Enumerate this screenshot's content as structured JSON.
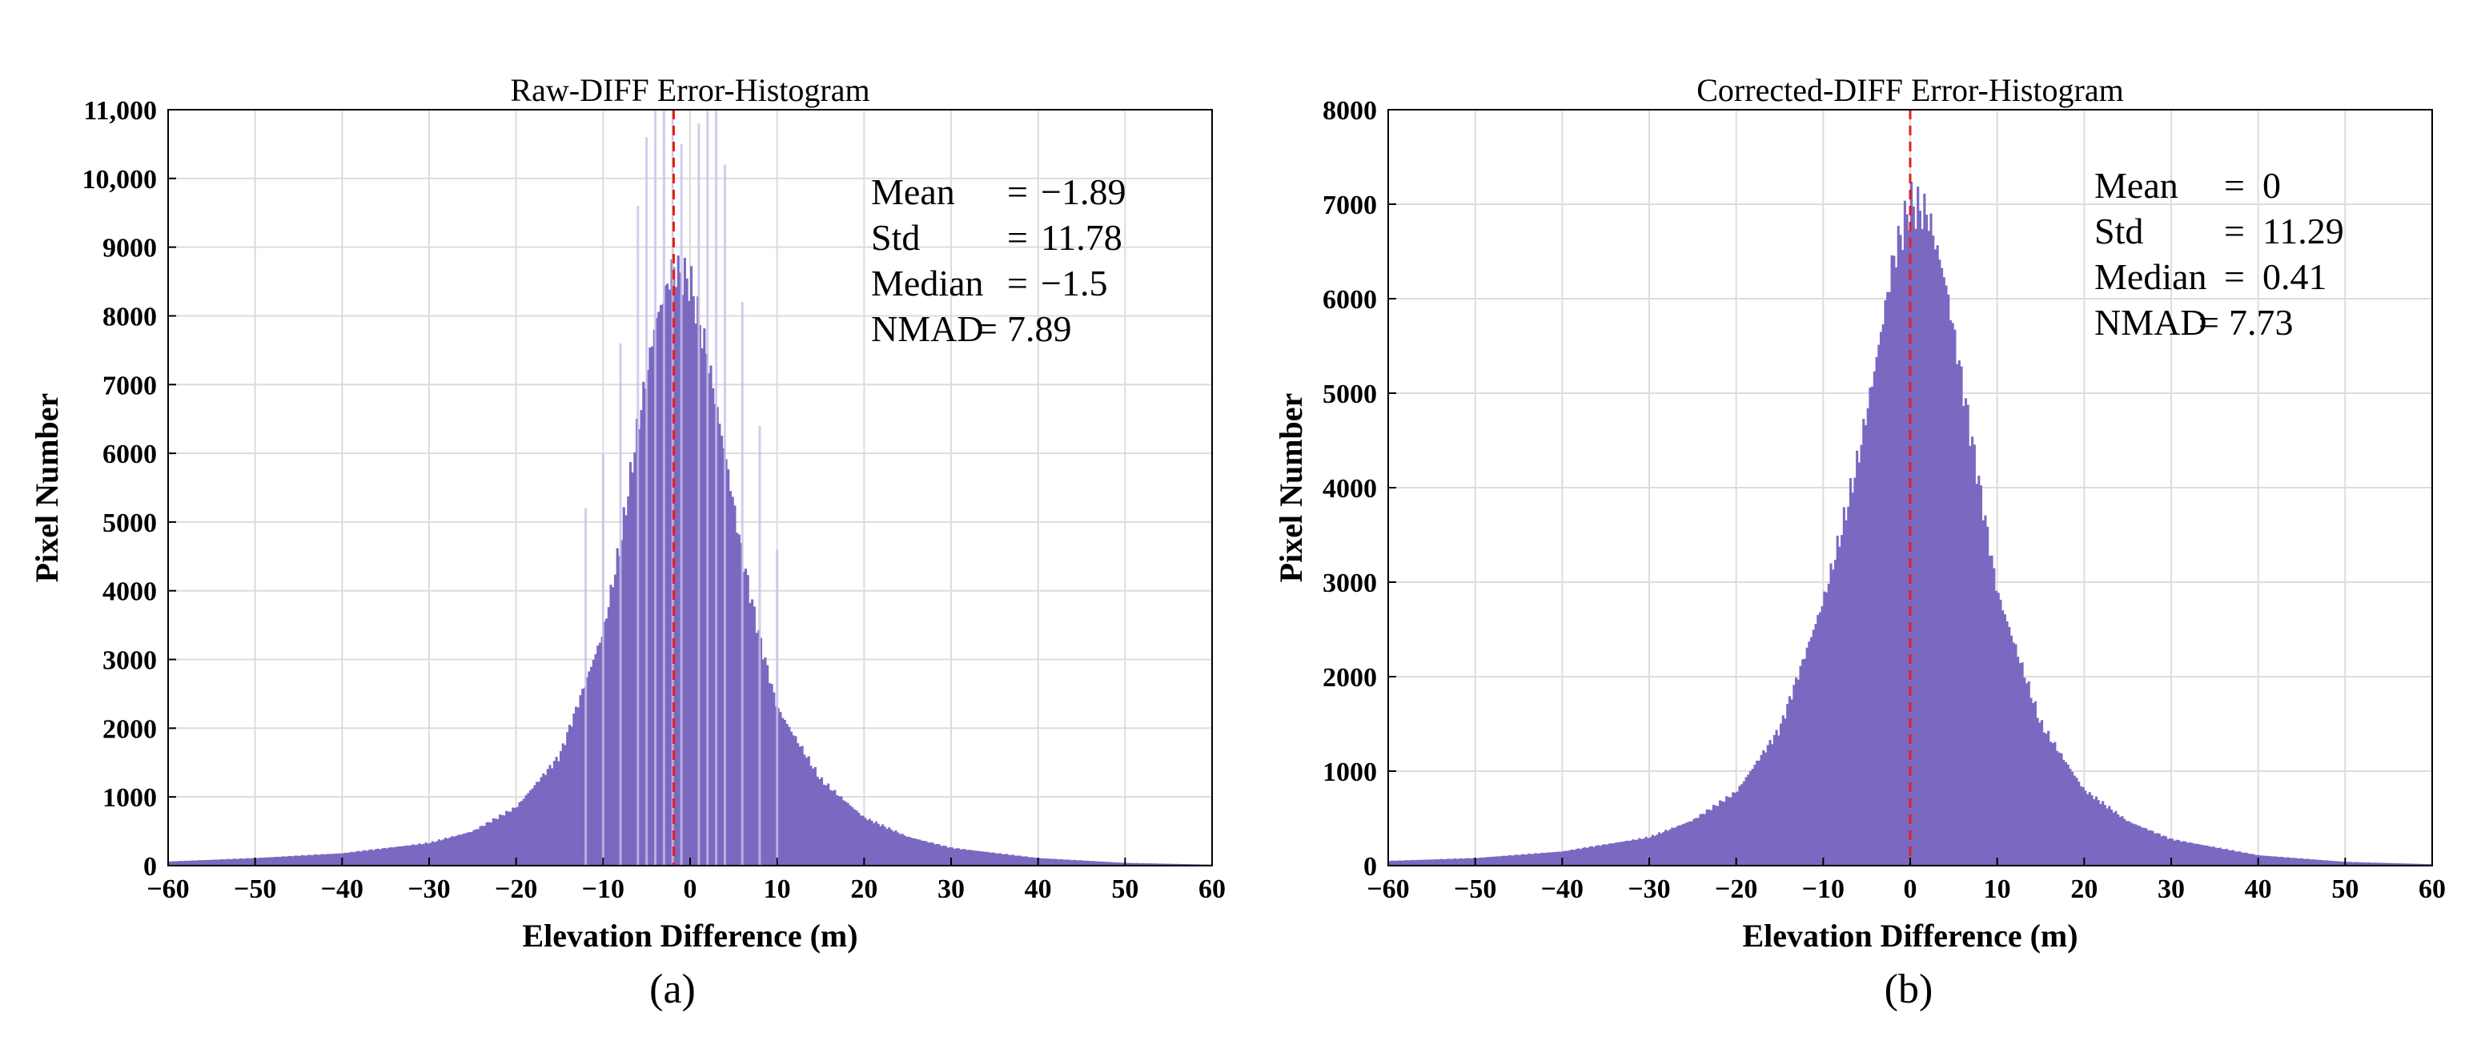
{
  "chart_data": [
    {
      "type": "bar",
      "panel": "(a)",
      "title": "Raw-DIFF Error-Histogram",
      "xlabel": "Elevation Difference (m)",
      "ylabel": "Pixel Number",
      "xlim": [
        -60,
        60
      ],
      "ylim": [
        0,
        11000
      ],
      "xticks": [
        -60,
        -50,
        -40,
        -30,
        -20,
        -10,
        0,
        10,
        20,
        30,
        40,
        50,
        60
      ],
      "yticks": [
        0,
        1000,
        2000,
        3000,
        4000,
        5000,
        6000,
        7000,
        8000,
        9000,
        10000,
        11000
      ],
      "ytick_labels": [
        "0",
        "1000",
        "2000",
        "3000",
        "4000",
        "5000",
        "6000",
        "7000",
        "8000",
        "9000",
        "10,000",
        "11,000"
      ],
      "grid": true,
      "bar_color": "#7b68c0",
      "mean_line": {
        "x": -1.89,
        "color": "#e0201b",
        "style": "dashed"
      },
      "histogram": {
        "x": [
          -60,
          -50,
          -40,
          -30,
          -25,
          -20,
          -15,
          -10,
          -8,
          -6,
          -4,
          -2,
          0,
          2,
          4,
          6,
          8,
          10,
          15,
          20,
          25,
          30,
          40,
          50,
          60
        ],
        "values": [
          60,
          110,
          180,
          330,
          500,
          850,
          1600,
          3400,
          4700,
          6400,
          7900,
          8700,
          8500,
          7400,
          6000,
          4500,
          3300,
          2300,
          1250,
          700,
          420,
          260,
          110,
          40,
          15
        ]
      },
      "spikes": {
        "x": [
          -12,
          -10,
          -8,
          -6,
          -5,
          -4,
          -3,
          -2,
          -1,
          1,
          2,
          3,
          4,
          6,
          8,
          10
        ],
        "values": [
          5200,
          6000,
          7600,
          9600,
          10600,
          11000,
          11000,
          11000,
          10500,
          10800,
          11000,
          11000,
          10200,
          8200,
          6400,
          4600
        ]
      },
      "stats": [
        {
          "label": "Mean",
          "sep": "=",
          "value": "−1.89"
        },
        {
          "label": "Std",
          "sep": "=",
          "value": "11.78"
        },
        {
          "label": "Median",
          "sep": "=",
          "value": "−1.5"
        },
        {
          "label": "NMAD",
          "sep": "=",
          "value": "7.89"
        }
      ]
    },
    {
      "type": "bar",
      "panel": "(b)",
      "title": "Corrected-DIFF Error-Histogram",
      "xlabel": "Elevation Difference (m)",
      "ylabel": "Pixel Number",
      "xlim": [
        -60,
        60
      ],
      "ylim": [
        0,
        8000
      ],
      "xticks": [
        -60,
        -50,
        -40,
        -30,
        -20,
        -10,
        0,
        10,
        20,
        30,
        40,
        50,
        60
      ],
      "yticks": [
        0,
        1000,
        2000,
        3000,
        4000,
        5000,
        6000,
        7000,
        8000
      ],
      "ytick_labels": [
        "0",
        "1000",
        "2000",
        "3000",
        "4000",
        "5000",
        "6000",
        "7000",
        "8000"
      ],
      "grid": true,
      "bar_color": "#7b68c0",
      "mean_line": {
        "x": 0,
        "color": "#e0201b",
        "style": "dashed"
      },
      "histogram": {
        "x": [
          -60,
          -50,
          -40,
          -30,
          -25,
          -20,
          -15,
          -10,
          -8,
          -6,
          -4,
          -2,
          0,
          2,
          4,
          6,
          8,
          10,
          15,
          20,
          25,
          30,
          40,
          50,
          60
        ],
        "values": [
          50,
          80,
          150,
          300,
          480,
          780,
          1450,
          2800,
          3500,
          4300,
          5300,
          6400,
          7000,
          6900,
          6200,
          5100,
          4000,
          2900,
          1500,
          800,
          470,
          280,
          110,
          40,
          15
        ]
      },
      "spikes": {
        "x": [],
        "values": []
      },
      "stats": [
        {
          "label": "Mean",
          "sep": "=",
          "value": "0"
        },
        {
          "label": "Std",
          "sep": "=",
          "value": "11.29"
        },
        {
          "label": "Median",
          "sep": "=",
          "value": "0.41"
        },
        {
          "label": "NMAD",
          "sep": "=",
          "value": "7.73"
        }
      ]
    }
  ]
}
